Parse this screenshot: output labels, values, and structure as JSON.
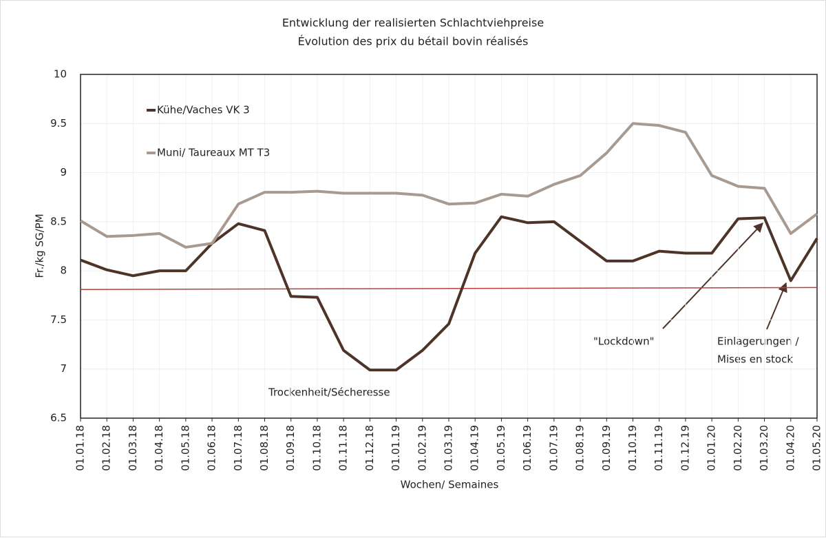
{
  "chart_data": {
    "type": "line",
    "title": [
      "Entwicklung der realisierten Schlachtviehpreise",
      "Évolution des prix du bétail bovin réalisés"
    ],
    "x_label": "Wochen/ Semaines",
    "y_label": "Fr./kg SG/PM",
    "categories": [
      "01.01.18",
      "01.02.18",
      "01.03.18",
      "01.04.18",
      "01.05.18",
      "01.06.18",
      "01.07.18",
      "01.08.18",
      "01.09.18",
      "01.10.18",
      "01.11.18",
      "01.12.18",
      "01.01.19",
      "01.02.19",
      "01.03.19",
      "01.04.19",
      "01.05.19",
      "01.06.19",
      "01.07.19",
      "01.08.19",
      "01.09.19",
      "01.10.19",
      "01.11.19",
      "01.12.19",
      "01.01.20",
      "01.02.20",
      "01.03.20",
      "01.04.20",
      "01.05.20"
    ],
    "series": [
      {
        "name": "Kühe/Vaches VK 3",
        "color": "#4e3328",
        "values": [
          8.11,
          8.01,
          7.95,
          8.0,
          8.0,
          8.28,
          8.48,
          8.41,
          7.74,
          7.73,
          7.19,
          6.99,
          6.99,
          7.19,
          7.46,
          8.18,
          8.55,
          8.49,
          8.5,
          8.3,
          8.1,
          8.1,
          8.2,
          8.18,
          8.18,
          8.53,
          8.54,
          7.9,
          8.33
        ]
      },
      {
        "name": "Muni/ Taureaux MT T3",
        "color": "#a89a90",
        "values": [
          8.51,
          8.35,
          8.36,
          8.38,
          8.24,
          8.28,
          8.68,
          8.8,
          8.8,
          8.81,
          8.79,
          8.79,
          8.79,
          8.77,
          8.68,
          8.69,
          8.78,
          8.76,
          8.88,
          8.97,
          9.2,
          9.5,
          9.48,
          9.41,
          8.97,
          8.86,
          8.84,
          8.38,
          8.58
        ]
      }
    ],
    "reference_line": {
      "color": "#b5413c",
      "values": [
        7.81,
        7.83
      ]
    },
    "annotations": {
      "drought": "Trockenheit/Sécheresse",
      "lockdown": "\"Lockdown\"",
      "storage": [
        "Einlagerungen /",
        "Mises en stock"
      ]
    },
    "ylim": [
      6.5,
      10
    ],
    "yticks": [
      6.5,
      7,
      7.5,
      8,
      8.5,
      9,
      9.5,
      10
    ],
    "grid": true
  }
}
